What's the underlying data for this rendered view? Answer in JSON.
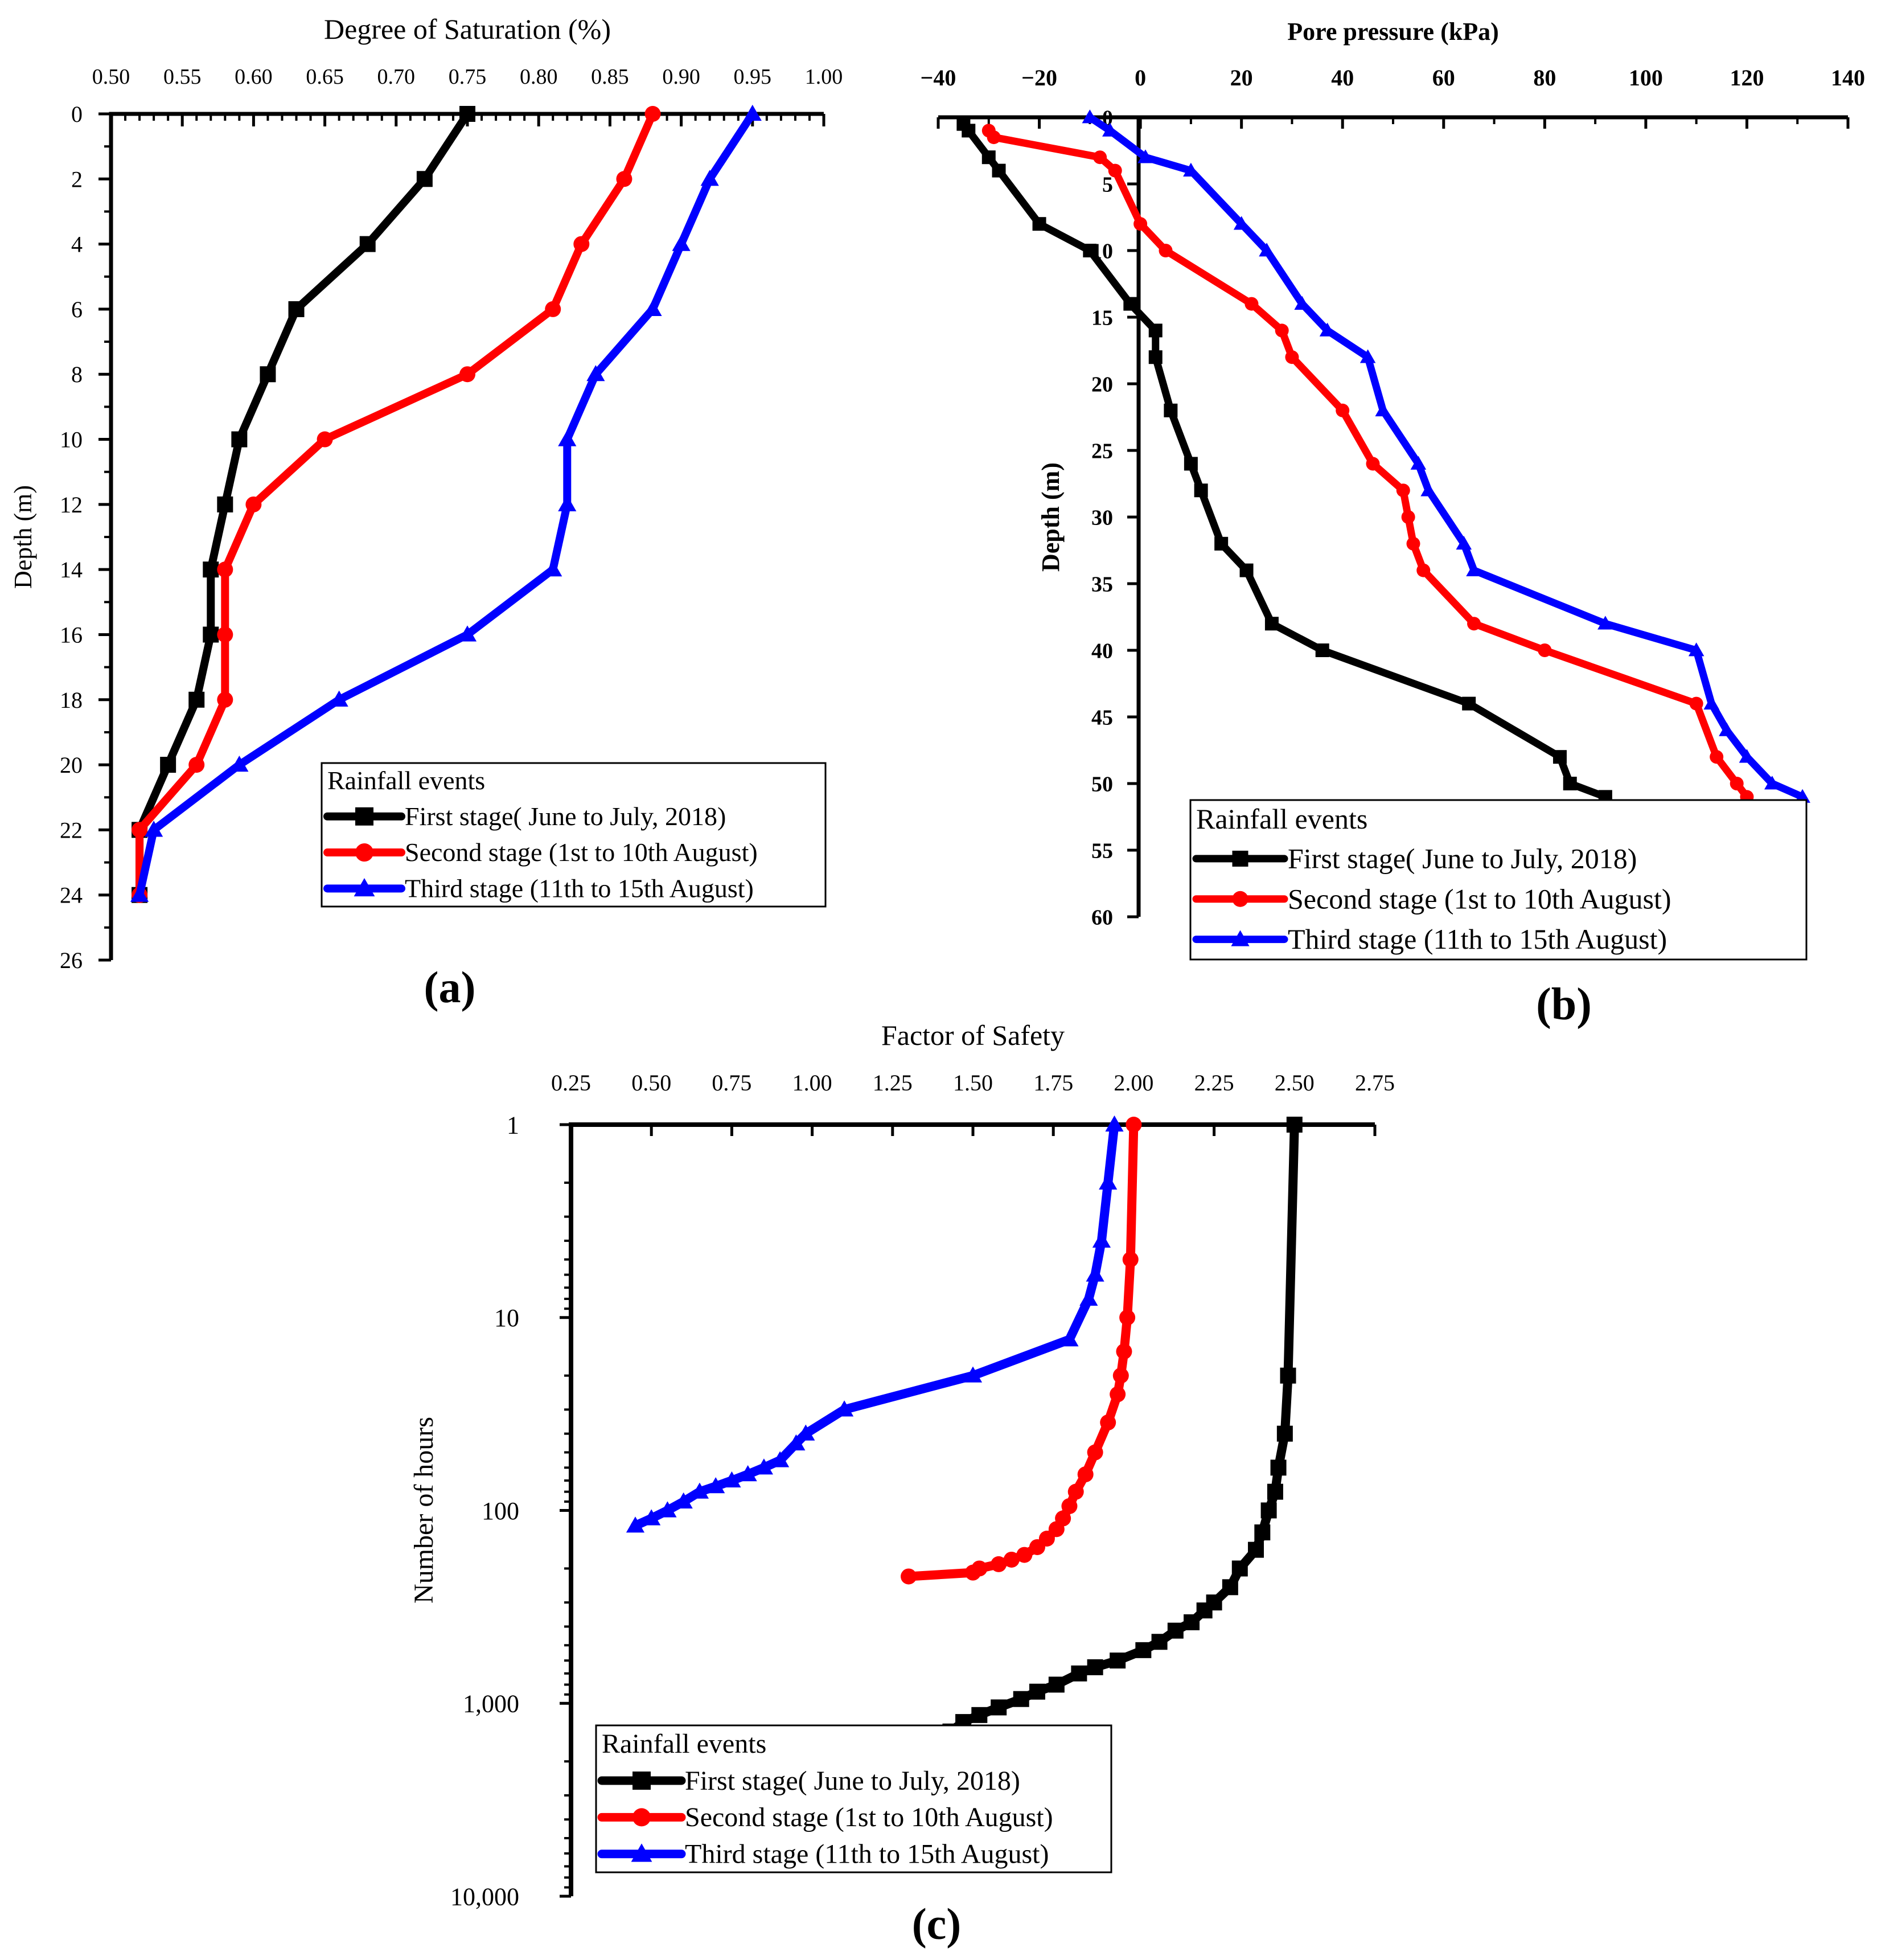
{
  "legend_title": "Rainfall events",
  "series_meta": [
    {
      "name": "First stage( June to July, 2018)",
      "color": "#000000",
      "marker": "square"
    },
    {
      "name": "Second stage (1st to 10th August)",
      "color": "#ff0000",
      "marker": "circle"
    },
    {
      "name": "Third stage (11th to 15th August)",
      "color": "#0000ff",
      "marker": "triangle"
    }
  ],
  "chart_data": [
    {
      "type": "line",
      "panel_label": "(a)",
      "title": "Degree of Saturation (%)",
      "xlabel": "Degree of Saturation (%)",
      "ylabel": "Depth (m)",
      "xlim": [
        0.5,
        1.0
      ],
      "ylim": [
        0,
        26
      ],
      "y_inverted": true,
      "x_ticks": [
        "0.50",
        "0.55",
        "0.60",
        "0.65",
        "0.70",
        "0.75",
        "0.80",
        "0.85",
        "0.90",
        "0.95",
        "1.00"
      ],
      "x_tick_values": [
        0.5,
        0.55,
        0.6,
        0.65,
        0.7,
        0.75,
        0.8,
        0.85,
        0.9,
        0.95,
        1.0
      ],
      "y_ticks": [
        "0",
        "2",
        "4",
        "6",
        "8",
        "10",
        "12",
        "14",
        "16",
        "18",
        "20",
        "22",
        "24",
        "26"
      ],
      "y_tick_values": [
        0,
        2,
        4,
        6,
        8,
        10,
        12,
        14,
        16,
        18,
        20,
        22,
        24,
        26
      ],
      "series": [
        {
          "name": "First stage( June to July, 2018)",
          "x": [
            0.75,
            0.72,
            0.68,
            0.63,
            0.61,
            0.59,
            0.58,
            0.57,
            0.57,
            0.56,
            0.54,
            0.52,
            0.52
          ],
          "y": [
            0,
            2,
            4,
            6,
            8,
            10,
            12,
            14,
            16,
            18,
            20,
            22,
            24
          ]
        },
        {
          "name": "Second stage (1st to 10th August)",
          "x": [
            0.88,
            0.86,
            0.83,
            0.81,
            0.75,
            0.65,
            0.6,
            0.58,
            0.58,
            0.58,
            0.56,
            0.52,
            0.52
          ],
          "y": [
            0,
            2,
            4,
            6,
            8,
            10,
            12,
            14,
            16,
            18,
            20,
            22,
            24
          ]
        },
        {
          "name": "Third stage (11th to 15th August)",
          "x": [
            0.95,
            0.92,
            0.9,
            0.88,
            0.84,
            0.82,
            0.82,
            0.81,
            0.75,
            0.66,
            0.59,
            0.53,
            0.52
          ],
          "y": [
            0,
            2,
            4,
            6,
            8,
            10,
            12,
            14,
            16,
            18,
            20,
            22,
            24
          ]
        }
      ]
    },
    {
      "type": "line",
      "panel_label": "(b)",
      "title": "Pore pressure (kPa)",
      "xlabel": "Pore pressure (kPa)",
      "ylabel": "Depth (m)",
      "xlim": [
        -40,
        140
      ],
      "ylim": [
        0,
        60
      ],
      "y_inverted": true,
      "x_ticks": [
        "−40",
        "−20",
        "0",
        "20",
        "40",
        "60",
        "80",
        "100",
        "120",
        "140"
      ],
      "x_tick_values": [
        -40,
        -20,
        0,
        20,
        40,
        60,
        80,
        100,
        120,
        140
      ],
      "y_ticks": [
        "0",
        "5",
        "10",
        "15",
        "20",
        "25",
        "30",
        "35",
        "40",
        "45",
        "50",
        "55",
        "60"
      ],
      "y_tick_values": [
        0,
        5,
        10,
        15,
        20,
        25,
        30,
        35,
        40,
        45,
        50,
        55,
        60
      ],
      "series": [
        {
          "name": "First stage( June to July, 2018)",
          "x": [
            -35,
            -34,
            -30,
            -28,
            -20,
            -10,
            -2,
            3,
            3,
            6,
            10,
            12,
            16,
            21,
            26,
            36,
            65,
            83,
            85,
            92
          ],
          "y": [
            0.5,
            1,
            3,
            4,
            8,
            10,
            14,
            16,
            18,
            22,
            26,
            28,
            32,
            34,
            38,
            40,
            44,
            48,
            50,
            51
          ]
        },
        {
          "name": "Second stage (1st to 10th August)",
          "x": [
            -30,
            -29,
            -8,
            -5,
            0,
            5,
            22,
            28,
            30,
            40,
            46,
            52,
            53,
            54,
            56,
            66,
            80,
            110,
            114,
            118,
            120
          ],
          "y": [
            1,
            1.5,
            3,
            4,
            8,
            10,
            14,
            16,
            18,
            22,
            26,
            28,
            30,
            32,
            34,
            38,
            40,
            44,
            48,
            50,
            51
          ]
        },
        {
          "name": "Third stage (11th to 15th August)",
          "x": [
            -10,
            -6,
            1,
            10,
            20,
            25,
            32,
            37,
            45,
            48,
            55,
            57,
            64,
            66,
            92,
            110,
            113,
            116,
            120,
            125,
            131
          ],
          "y": [
            0,
            1,
            3,
            4,
            8,
            10,
            14,
            16,
            18,
            22,
            26,
            28,
            32,
            34,
            38,
            40,
            44,
            46,
            48,
            50,
            51
          ]
        }
      ]
    },
    {
      "type": "line",
      "panel_label": "(c)",
      "title": "Factor of Safety",
      "xlabel": "Factor of Safety",
      "ylabel": "Number of hours",
      "xlim": [
        0.25,
        2.75
      ],
      "ylim": [
        1,
        10000
      ],
      "y_scale": "log",
      "y_inverted": true,
      "x_ticks": [
        "0.25",
        "0.50",
        "0.75",
        "1.00",
        "1.25",
        "1.50",
        "1.75",
        "2.00",
        "2.25",
        "2.50",
        "2.75"
      ],
      "x_tick_values": [
        0.25,
        0.5,
        0.75,
        1.0,
        1.25,
        1.5,
        1.75,
        2.0,
        2.25,
        2.5,
        2.75
      ],
      "y_ticks": [
        "1",
        "10",
        "100",
        "1,000",
        "10,000"
      ],
      "y_tick_values": [
        1,
        10,
        100,
        1000,
        10000
      ],
      "series": [
        {
          "name": "First stage( June to July, 2018)",
          "x": [
            2.5,
            2.48,
            2.47,
            2.45,
            2.44,
            2.42,
            2.4,
            2.38,
            2.33,
            2.3,
            2.25,
            2.22,
            2.18,
            2.13,
            2.08,
            2.03,
            1.95,
            1.88,
            1.83,
            1.76,
            1.7,
            1.65,
            1.58,
            1.52,
            1.47,
            1.43
          ],
          "y": [
            1,
            20,
            40,
            60,
            80,
            100,
            130,
            160,
            200,
            250,
            300,
            330,
            380,
            420,
            480,
            530,
            600,
            650,
            700,
            800,
            870,
            950,
            1050,
            1150,
            1250,
            1400
          ]
        },
        {
          "name": "Second stage (1st to 10th August)",
          "x": [
            2.0,
            1.99,
            1.98,
            1.97,
            1.96,
            1.95,
            1.92,
            1.88,
            1.85,
            1.82,
            1.8,
            1.78,
            1.76,
            1.73,
            1.7,
            1.66,
            1.62,
            1.58,
            1.52,
            1.5,
            1.3
          ],
          "y": [
            1,
            5,
            10,
            15,
            20,
            25,
            35,
            50,
            65,
            80,
            95,
            110,
            125,
            140,
            155,
            170,
            180,
            190,
            200,
            210,
            220
          ]
        },
        {
          "name": "Third stage (11th to 15th August)",
          "x": [
            1.94,
            1.92,
            1.9,
            1.88,
            1.86,
            1.8,
            1.5,
            1.1,
            0.98,
            0.95,
            0.9,
            0.85,
            0.8,
            0.75,
            0.7,
            0.65,
            0.6,
            0.55,
            0.5,
            0.45
          ],
          "y": [
            1,
            2,
            4,
            6,
            8,
            13,
            20,
            30,
            40,
            45,
            55,
            60,
            65,
            70,
            75,
            80,
            90,
            100,
            110,
            120
          ]
        }
      ]
    }
  ]
}
